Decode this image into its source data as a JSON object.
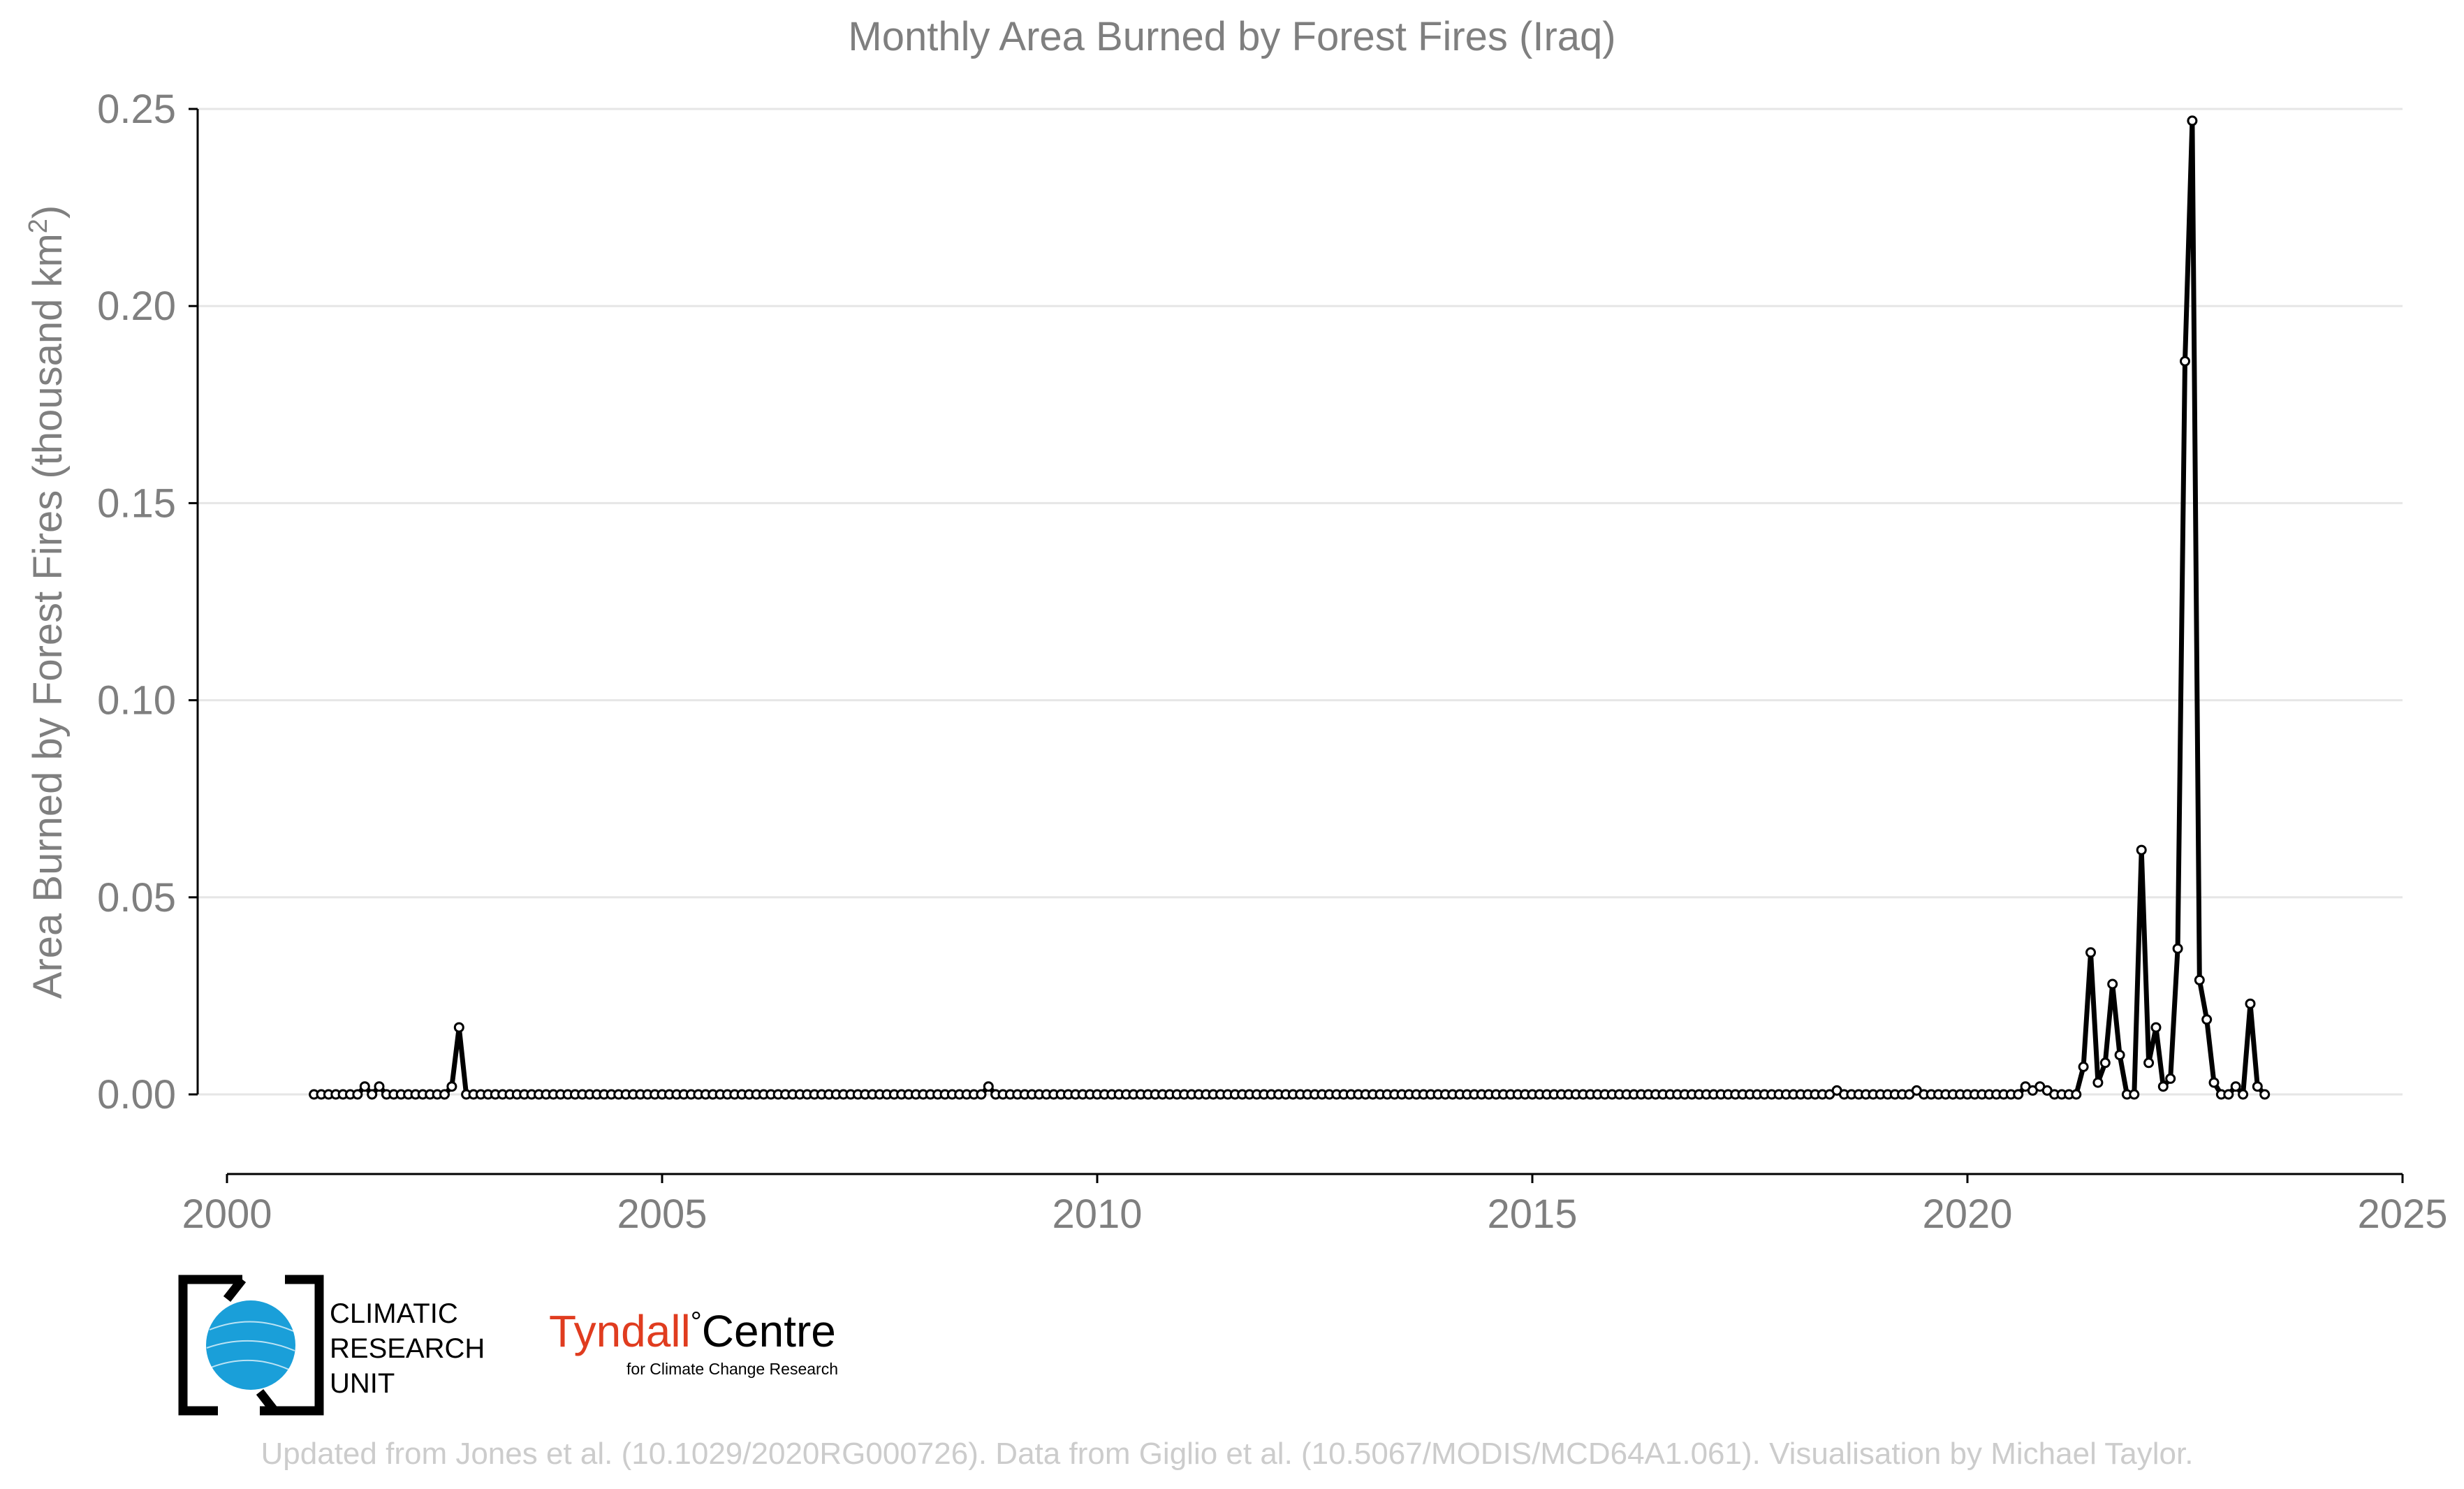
{
  "chart_data": {
    "type": "line",
    "title": "Monthly Area Burned by Forest Fires (Iraq)",
    "ylabel_main": "Area Burned by Forest Fires (thousand km",
    "ylabel_sup": "2",
    "ylabel_close": ")",
    "xlabel": "",
    "xlim": [
      2000,
      2025
    ],
    "ylim": [
      -0.02,
      0.25
    ],
    "x_ticks": [
      2000,
      2005,
      2010,
      2015,
      2020,
      2025
    ],
    "x_tick_labels": [
      "2000",
      "2005",
      "2010",
      "2015",
      "2020",
      "2025"
    ],
    "y_ticks": [
      0,
      0.05,
      0.1,
      0.15,
      0.2,
      0.25
    ],
    "y_tick_labels": [
      "0.00",
      "0.05",
      "0.10",
      "0.15",
      "0.20",
      "0.25"
    ],
    "grid": "horizontal",
    "colors": {
      "line": "#000000",
      "marker_fill": "#ffffff",
      "grid": "#e6e6e6",
      "text": "#7f7f7f",
      "axis": "#000000",
      "footer": "#cccccc"
    },
    "series": [
      {
        "start": "2001-01",
        "frequency": "monthly",
        "values": [
          0,
          0,
          0,
          0,
          0,
          0,
          0,
          0.002,
          0,
          0.002,
          0,
          0,
          0,
          0,
          0,
          0,
          0,
          0,
          0,
          0.002,
          0.017,
          0,
          0,
          0,
          0,
          0,
          0,
          0,
          0,
          0,
          0,
          0,
          0,
          0,
          0,
          0,
          0,
          0,
          0,
          0,
          0,
          0,
          0,
          0,
          0,
          0,
          0,
          0,
          0,
          0,
          0,
          0,
          0,
          0,
          0,
          0,
          0,
          0,
          0,
          0,
          0,
          0,
          0,
          0,
          0,
          0,
          0,
          0,
          0,
          0,
          0,
          0,
          0,
          0,
          0,
          0,
          0,
          0,
          0,
          0,
          0,
          0,
          0,
          0,
          0,
          0,
          0,
          0,
          0,
          0,
          0,
          0,
          0,
          0.002,
          0,
          0,
          0,
          0,
          0,
          0,
          0,
          0,
          0,
          0,
          0,
          0,
          0,
          0,
          0,
          0,
          0,
          0,
          0,
          0,
          0,
          0,
          0,
          0,
          0,
          0,
          0,
          0,
          0,
          0,
          0,
          0,
          0,
          0,
          0,
          0,
          0,
          0,
          0,
          0,
          0,
          0,
          0,
          0,
          0,
          0,
          0,
          0,
          0,
          0,
          0,
          0,
          0,
          0,
          0,
          0,
          0,
          0,
          0,
          0,
          0,
          0,
          0,
          0,
          0,
          0,
          0,
          0,
          0,
          0,
          0,
          0,
          0,
          0,
          0,
          0,
          0,
          0,
          0,
          0,
          0,
          0,
          0,
          0,
          0,
          0,
          0,
          0,
          0,
          0,
          0,
          0,
          0,
          0,
          0,
          0,
          0,
          0,
          0,
          0,
          0,
          0,
          0,
          0,
          0,
          0,
          0,
          0,
          0,
          0,
          0,
          0,
          0,
          0,
          0,
          0,
          0.001,
          0,
          0,
          0,
          0,
          0,
          0,
          0,
          0,
          0,
          0,
          0.001,
          0,
          0,
          0,
          0,
          0,
          0,
          0,
          0,
          0,
          0,
          0,
          0,
          0,
          0,
          0.002,
          0.001,
          0.002,
          0.001,
          0,
          0,
          0,
          0,
          0.007,
          0.036,
          0.003,
          0.008,
          0.028,
          0.01,
          0,
          0,
          0.062,
          0.008,
          0.017,
          0.002,
          0.004,
          0.037,
          0.186,
          0.247,
          0.029,
          0.019,
          0.003,
          0,
          0,
          0.002,
          0,
          0.023,
          0.002,
          0
        ]
      }
    ]
  },
  "logos": {
    "cru_line1": "CLIMATIC",
    "cru_line2": "RESEARCH",
    "cru_line3": "UNIT",
    "tyndall_name": "Tyndall",
    "tyndall_degree": "°",
    "tyndall_centre": "Centre",
    "tyndall_sub": "for Climate Change Research"
  },
  "footer": "Updated from Jones et al. (10.1029/2020RG000726). Data from Giglio et al. (10.5067/MODIS/MCD64A1.061). Visualisation by Michael Taylor."
}
